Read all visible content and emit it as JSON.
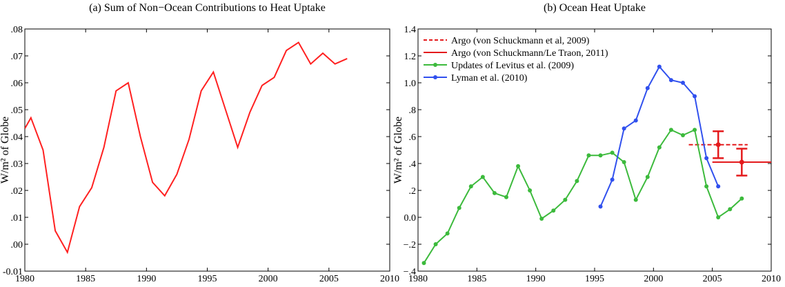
{
  "chart_data": [
    {
      "type": "line",
      "title": "(a)  Sum of Non−Ocean Contributions to Heat Uptake",
      "ylabel": "W/m² of Globe",
      "xlim": [
        1980,
        2010
      ],
      "xticks": [
        1980,
        1985,
        1990,
        1995,
        2000,
        2005,
        2010
      ],
      "ylim": [
        -0.01,
        0.08
      ],
      "yticks": [
        {
          "value": -0.01,
          "label": "-0.01"
        },
        {
          "value": 0,
          "label": ".00"
        },
        {
          "value": 0.01,
          "label": ".01"
        },
        {
          "value": 0.02,
          "label": ".02"
        },
        {
          "value": 0.03,
          "label": ".03"
        },
        {
          "value": 0.04,
          "label": ".04"
        },
        {
          "value": 0.05,
          "label": ".05"
        },
        {
          "value": 0.06,
          "label": ".06"
        },
        {
          "value": 0.07,
          "label": ".07"
        },
        {
          "value": 0.08,
          "label": ".08"
        }
      ],
      "series": [
        {
          "color": "#ff2020",
          "markers": false,
          "x": [
            1980,
            1980.5,
            1981.5,
            1982.5,
            1983.5,
            1984.5,
            1985.5,
            1986.5,
            1987.5,
            1988.5,
            1989.5,
            1990.5,
            1991.5,
            1992.5,
            1993.5,
            1994.5,
            1995.5,
            1996.5,
            1997.5,
            1998.5,
            1999.5,
            2000.5,
            2001.5,
            2002.5,
            2003.5,
            2004.5,
            2005.5,
            2006.5
          ],
          "values": [
            0.043,
            0.047,
            0.035,
            0.005,
            -0.003,
            0.014,
            0.021,
            0.036,
            0.057,
            0.06,
            0.04,
            0.023,
            0.018,
            0.026,
            0.039,
            0.057,
            0.064,
            0.05,
            0.036,
            0.049,
            0.059,
            0.062,
            0.072,
            0.075,
            0.067,
            0.071,
            0.067,
            0.069
          ]
        }
      ]
    },
    {
      "type": "line",
      "title": "(b)  Ocean Heat Uptake",
      "ylabel": "W/m² of Globe",
      "legend": "upper left",
      "xlim": [
        1980,
        2010
      ],
      "xticks": [
        1980,
        1985,
        1990,
        1995,
        2000,
        2005,
        2010
      ],
      "ylim": [
        -0.4,
        1.4
      ],
      "yticks": [
        {
          "value": -0.4,
          "label": "−.4"
        },
        {
          "value": -0.2,
          "label": "−.2"
        },
        {
          "value": 0,
          "label": "0.0"
        },
        {
          "value": 0.2,
          "label": ".2"
        },
        {
          "value": 0.4,
          "label": ".4"
        },
        {
          "value": 0.6,
          "label": ".6"
        },
        {
          "value": 0.8,
          "label": ".8"
        },
        {
          "value": 1.0,
          "label": "1.0"
        },
        {
          "value": 1.2,
          "label": "1.2"
        },
        {
          "value": 1.4,
          "label": "1.4"
        }
      ],
      "series": [
        {
          "name": "Argo (von Schuckmann et al, 2009)",
          "color": "#e41a1c",
          "dashed": true,
          "markers": false,
          "x": [
            2003,
            2008
          ],
          "values": [
            0.54,
            0.54
          ],
          "point": {
            "x": 2005.5,
            "value": 0.54,
            "error": 0.1
          }
        },
        {
          "name": "Argo (von Schuckmann/Le Traon, 2011)",
          "color": "#e41a1c",
          "dashed": false,
          "markers": false,
          "x": [
            2005,
            2010
          ],
          "values": [
            0.41,
            0.41
          ],
          "point": {
            "x": 2007.5,
            "value": 0.41,
            "error": 0.1
          }
        },
        {
          "name": "Updates of Levitus et al. (2009)",
          "color": "#3cba3c",
          "markers": true,
          "x": [
            1980.5,
            1981.5,
            1982.5,
            1983.5,
            1984.5,
            1985.5,
            1986.5,
            1987.5,
            1988.5,
            1989.5,
            1990.5,
            1991.5,
            1992.5,
            1993.5,
            1994.5,
            1995.5,
            1996.5,
            1997.5,
            1998.5,
            1999.5,
            2000.5,
            2001.5,
            2002.5,
            2003.5,
            2004.5,
            2005.5,
            2006.5,
            2007.5
          ],
          "values": [
            -0.34,
            -0.2,
            -0.12,
            0.07,
            0.23,
            0.3,
            0.18,
            0.15,
            0.38,
            0.2,
            -0.01,
            0.05,
            0.13,
            0.27,
            0.46,
            0.46,
            0.48,
            0.41,
            0.13,
            0.3,
            0.52,
            0.65,
            0.61,
            0.65,
            0.23,
            0.0,
            0.06,
            0.14
          ]
        },
        {
          "name": "Lyman et al. (2010)",
          "color": "#3050ee",
          "markers": true,
          "x": [
            1995.5,
            1996.5,
            1997.5,
            1998.5,
            1999.5,
            2000.5,
            2001.5,
            2002.5,
            2003.5,
            2004.5,
            2005.5
          ],
          "values": [
            0.08,
            0.28,
            0.66,
            0.72,
            0.96,
            1.12,
            1.02,
            1.0,
            0.9,
            0.44,
            0.23
          ]
        }
      ]
    }
  ]
}
